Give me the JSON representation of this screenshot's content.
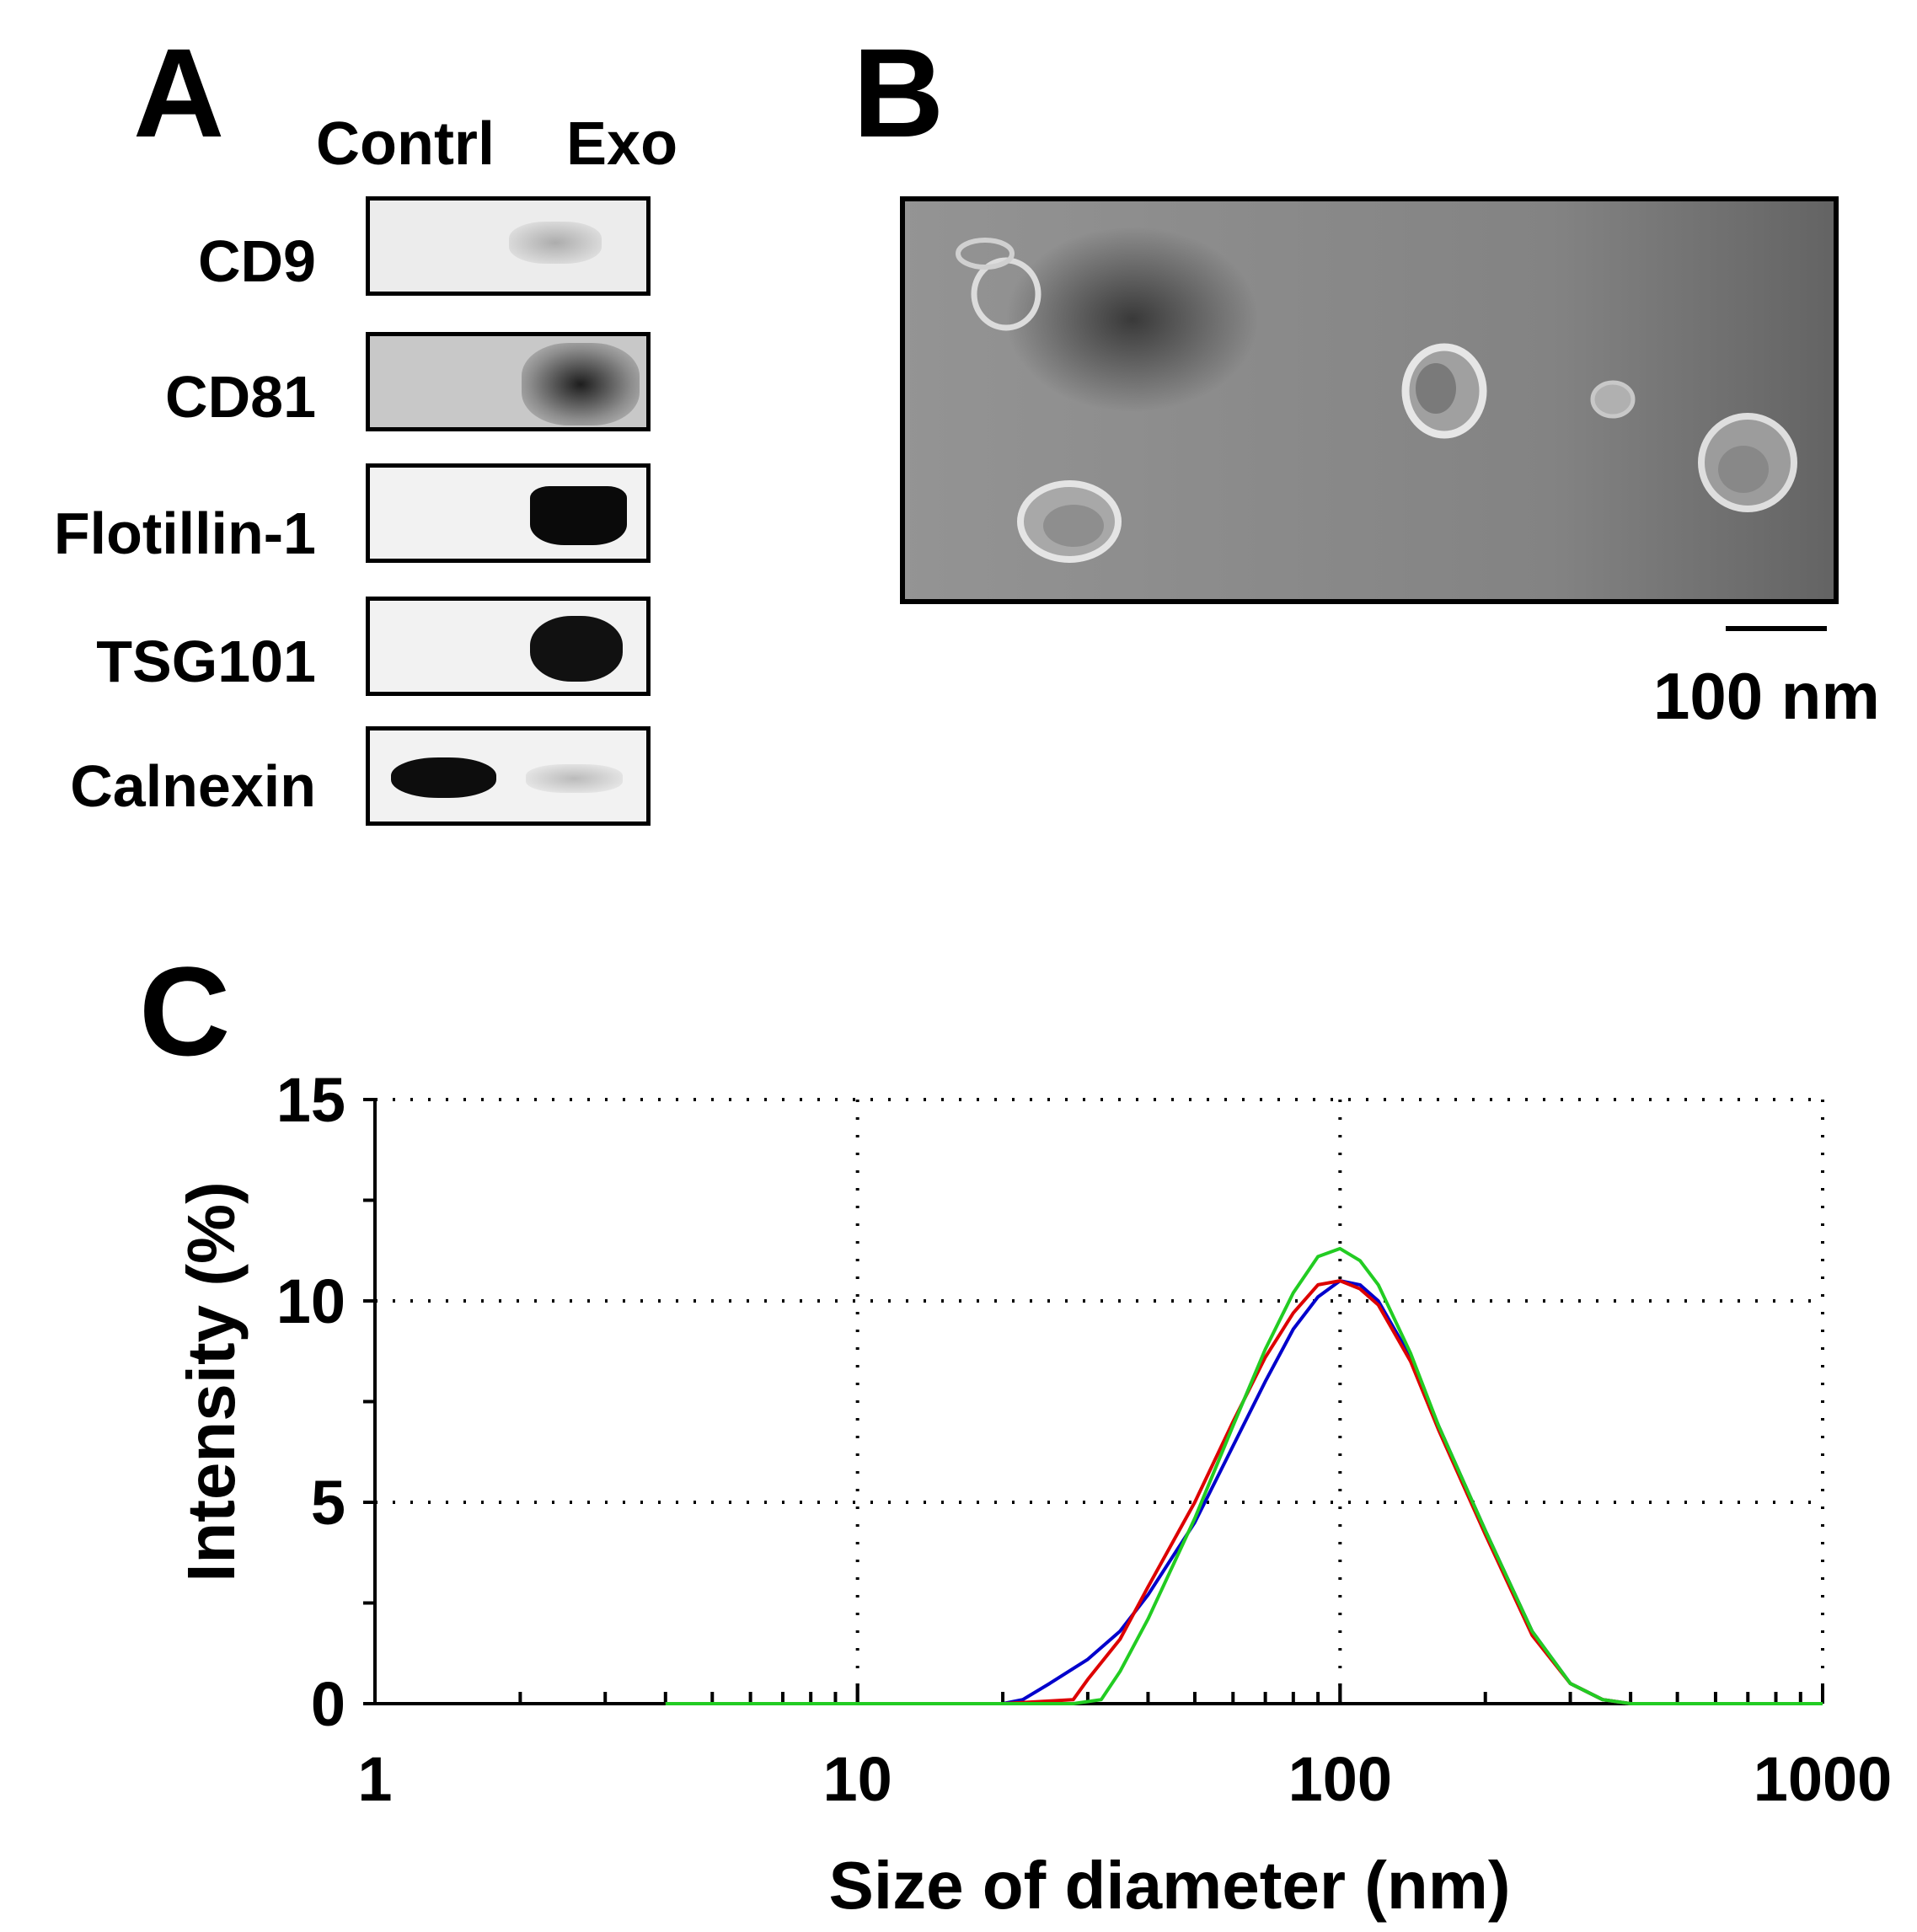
{
  "panels": {
    "a": "A",
    "b": "B",
    "c": "C"
  },
  "western_blot": {
    "lanes": [
      "Contrl",
      "Exo"
    ],
    "proteins": [
      {
        "label": "CD9"
      },
      {
        "label": "CD81"
      },
      {
        "label": "Flotillin-1"
      },
      {
        "label": "TSG101"
      },
      {
        "label": "Calnexin"
      }
    ]
  },
  "tem": {
    "scale_label": "100 nm"
  },
  "chart_data": {
    "type": "line",
    "xlabel": "Size of diameter (nm)",
    "ylabel": "Intensity (%)",
    "x_scale": "log",
    "xlim": [
      1,
      1000
    ],
    "ylim": [
      0,
      15
    ],
    "xticks": [
      "1",
      "10",
      "100",
      "1000"
    ],
    "yticks": [
      "0",
      "5",
      "10",
      "15"
    ],
    "grid": "dotted",
    "legend": "none",
    "series": [
      {
        "color": "#0000cc",
        "x": [
          4,
          10,
          20,
          22,
          25,
          30,
          35,
          40,
          50,
          60,
          70,
          80,
          90,
          100,
          110,
          120,
          140,
          160,
          200,
          250,
          300,
          350,
          400,
          1000
        ],
        "y": [
          0,
          0,
          0,
          0.1,
          0.5,
          1.1,
          1.8,
          2.7,
          4.5,
          6.4,
          8.0,
          9.3,
          10.1,
          10.5,
          10.4,
          10.0,
          8.6,
          6.9,
          4.3,
          1.8,
          0.5,
          0.1,
          0,
          0
        ]
      },
      {
        "color": "#dd0000",
        "x": [
          4,
          10,
          20,
          28,
          30,
          35,
          40,
          50,
          60,
          70,
          80,
          90,
          100,
          110,
          120,
          140,
          160,
          200,
          250,
          300,
          350,
          400,
          1000
        ],
        "y": [
          0,
          0,
          0,
          0.1,
          0.6,
          1.6,
          2.9,
          5.0,
          7.0,
          8.6,
          9.7,
          10.4,
          10.5,
          10.3,
          9.9,
          8.5,
          6.8,
          4.2,
          1.7,
          0.5,
          0.1,
          0,
          0
        ]
      },
      {
        "color": "#22cc22",
        "x": [
          4,
          10,
          20,
          28,
          32,
          35,
          40,
          50,
          60,
          70,
          80,
          90,
          100,
          110,
          120,
          140,
          160,
          200,
          250,
          300,
          350,
          400,
          1000
        ],
        "y": [
          0,
          0,
          0,
          0,
          0.1,
          0.8,
          2.1,
          4.6,
          6.9,
          8.8,
          10.2,
          11.1,
          11.3,
          11.0,
          10.4,
          8.7,
          6.9,
          4.3,
          1.8,
          0.5,
          0.1,
          0,
          0
        ]
      }
    ]
  }
}
